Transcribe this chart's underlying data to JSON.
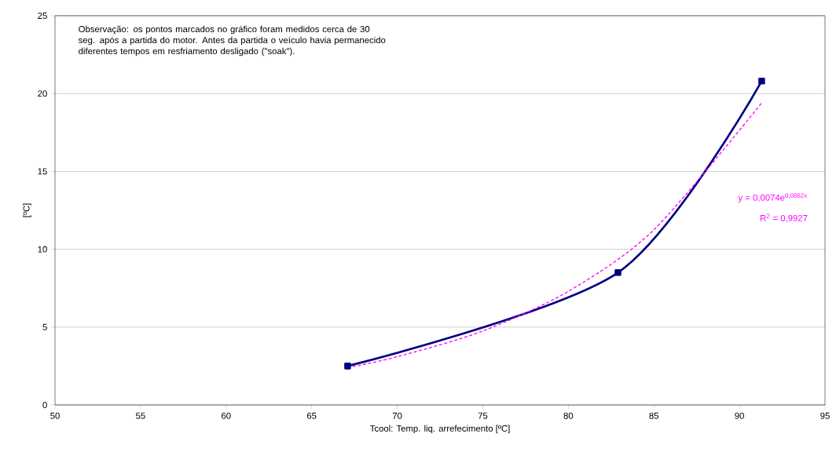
{
  "chart_data": {
    "type": "line",
    "xlabel": "Tcool: Temp. liq. arrefecimento [ºC]",
    "ylabel": "[ºC]",
    "x": [
      67.1,
      82.9,
      91.3
    ],
    "series": [
      {
        "color": "#000080",
        "values": [
          2.5,
          8.5,
          20.8
        ],
        "marker": "square",
        "line_style": "solid"
      },
      {
        "type": "line",
        "color": "#ff00ff",
        "x": [
          67.1,
          70,
          75,
          80,
          85,
          91.3
        ],
        "values": [
          2.4,
          3.1,
          4.75,
          7.3,
          11.25,
          19.4
        ],
        "marker": "none",
        "line_style": "dashed"
      }
    ],
    "xlim": [
      50,
      95
    ],
    "xticks": [
      50,
      55,
      60,
      65,
      70,
      75,
      80,
      85,
      90,
      95
    ],
    "ylim": [
      0,
      25
    ],
    "yticks": [
      0,
      5,
      10,
      15,
      20,
      25
    ],
    "grid": "y",
    "annotations": [
      "Observação: os pontos marcados no gráfico foram medidos cerca de 30 seg. após a partida do motor. Antes da partida o veículo havia permanecido diferentes tempos em resfriamento desligado (\"soak\").",
      "y = 0,0074e$^{0,0862x}$",
      "R$^{2}$ = 0,9927"
    ]
  }
}
